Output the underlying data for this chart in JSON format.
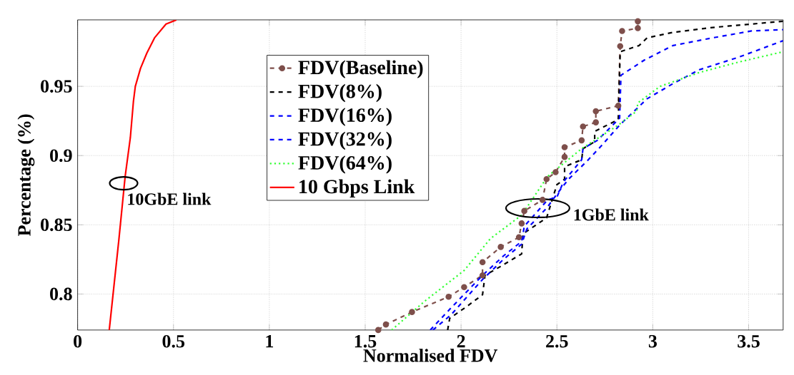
{
  "chart_data": {
    "type": "line",
    "xlabel": "Normalised FDV",
    "ylabel": "Percentage (%)",
    "xlim": [
      0,
      3.68
    ],
    "ylim": [
      0.774,
      0.998
    ],
    "xticks": [
      0,
      0.5,
      1,
      1.5,
      2,
      2.5,
      3,
      3.5
    ],
    "yticks": [
      0.8,
      0.85,
      0.9,
      0.95
    ],
    "grid": true,
    "legend": "top left",
    "annotations": [
      {
        "text": "10GbE link",
        "x": 0.24,
        "y": 0.88
      },
      {
        "text": "1GbE link",
        "x": 2.4,
        "y": 0.862
      }
    ],
    "series": [
      {
        "name": "FDV(Baseline)",
        "color": "#7e4f4b",
        "marker": "circle",
        "line_style": "dashed",
        "x": [
          1.568,
          1.608,
          1.744,
          1.935,
          2.016,
          2.112,
          2.112,
          2.207,
          2.302,
          2.316,
          2.33,
          2.425,
          2.446,
          2.493,
          2.54,
          2.54,
          2.629,
          2.636,
          2.703,
          2.703,
          2.82,
          2.83,
          2.84,
          2.922,
          2.922
        ],
        "values": [
          0.774,
          0.778,
          0.787,
          0.798,
          0.805,
          0.8135,
          0.823,
          0.834,
          0.841,
          0.851,
          0.86,
          0.868,
          0.883,
          0.888,
          0.899,
          0.906,
          0.911,
          0.921,
          0.924,
          0.932,
          0.936,
          0.979,
          0.99,
          0.992,
          0.997
        ]
      },
      {
        "name": "FDV(8%)",
        "color": "#000000",
        "marker": "none",
        "line_style": "dashed",
        "x": [
          1.93,
          1.941,
          2.03,
          2.112,
          2.125,
          2.207,
          2.316,
          2.323,
          2.446,
          2.5,
          2.54,
          2.54,
          2.629,
          2.636,
          2.697,
          2.697,
          2.82,
          2.83,
          2.929,
          2.97,
          3.106,
          3.311,
          3.515,
          3.68
        ],
        "values": [
          0.774,
          0.7825,
          0.791,
          0.7995,
          0.8135,
          0.82,
          0.829,
          0.8435,
          0.855,
          0.879,
          0.883,
          0.892,
          0.897,
          0.905,
          0.91,
          0.9175,
          0.926,
          0.975,
          0.9795,
          0.985,
          0.989,
          0.9925,
          0.995,
          0.997
        ]
      },
      {
        "name": "FDV(16%)",
        "color": "#0000ff",
        "marker": "none",
        "line_style": "dashed",
        "x": [
          1.839,
          1.941,
          2.112,
          2.221,
          2.316,
          2.33,
          2.452,
          2.5,
          2.534,
          2.629,
          2.636,
          2.711,
          2.827,
          2.834,
          2.956,
          3.106,
          3.311,
          3.515,
          3.68
        ],
        "values": [
          0.774,
          0.789,
          0.8135,
          0.8275,
          0.838,
          0.849,
          0.868,
          0.87,
          0.881,
          0.897,
          0.905,
          0.911,
          0.927,
          0.958,
          0.969,
          0.9795,
          0.985,
          0.99,
          0.991
        ]
      },
      {
        "name": "FDV(32%)",
        "color": "#0000ff",
        "marker": "none",
        "line_style": "dashed",
        "x": [
          1.853,
          1.948,
          2.112,
          2.221,
          2.316,
          2.343,
          2.446,
          2.507,
          2.561,
          2.657,
          2.738,
          2.827,
          2.97,
          3.106,
          3.243,
          3.447,
          3.68
        ],
        "values": [
          0.774,
          0.785,
          0.8105,
          0.825,
          0.836,
          0.847,
          0.862,
          0.8735,
          0.883,
          0.896,
          0.908,
          0.922,
          0.941,
          0.952,
          0.962,
          0.971,
          0.983
        ]
      },
      {
        "name": "FDV(64%)",
        "color": "#33ff33",
        "marker": "none",
        "line_style": "dotted",
        "x": [
          1.638,
          1.812,
          2.016,
          2.153,
          2.316,
          2.452,
          2.629,
          2.82,
          2.916,
          2.922,
          3.038,
          3.243,
          3.447,
          3.68
        ],
        "values": [
          0.774,
          0.795,
          0.817,
          0.84,
          0.857,
          0.885,
          0.905,
          0.922,
          0.932,
          0.938,
          0.95,
          0.96,
          0.9675,
          0.975
        ]
      },
      {
        "name": "10 Gbps Link",
        "color": "#ff0000",
        "marker": "none",
        "line_style": "solid",
        "x": [
          0.165,
          0.215,
          0.248,
          0.275,
          0.291,
          0.301,
          0.328,
          0.361,
          0.401,
          0.461,
          0.515
        ],
        "values": [
          0.774,
          0.839,
          0.885,
          0.913,
          0.939,
          0.95,
          0.963,
          0.974,
          0.985,
          0.995,
          0.998
        ]
      }
    ]
  }
}
